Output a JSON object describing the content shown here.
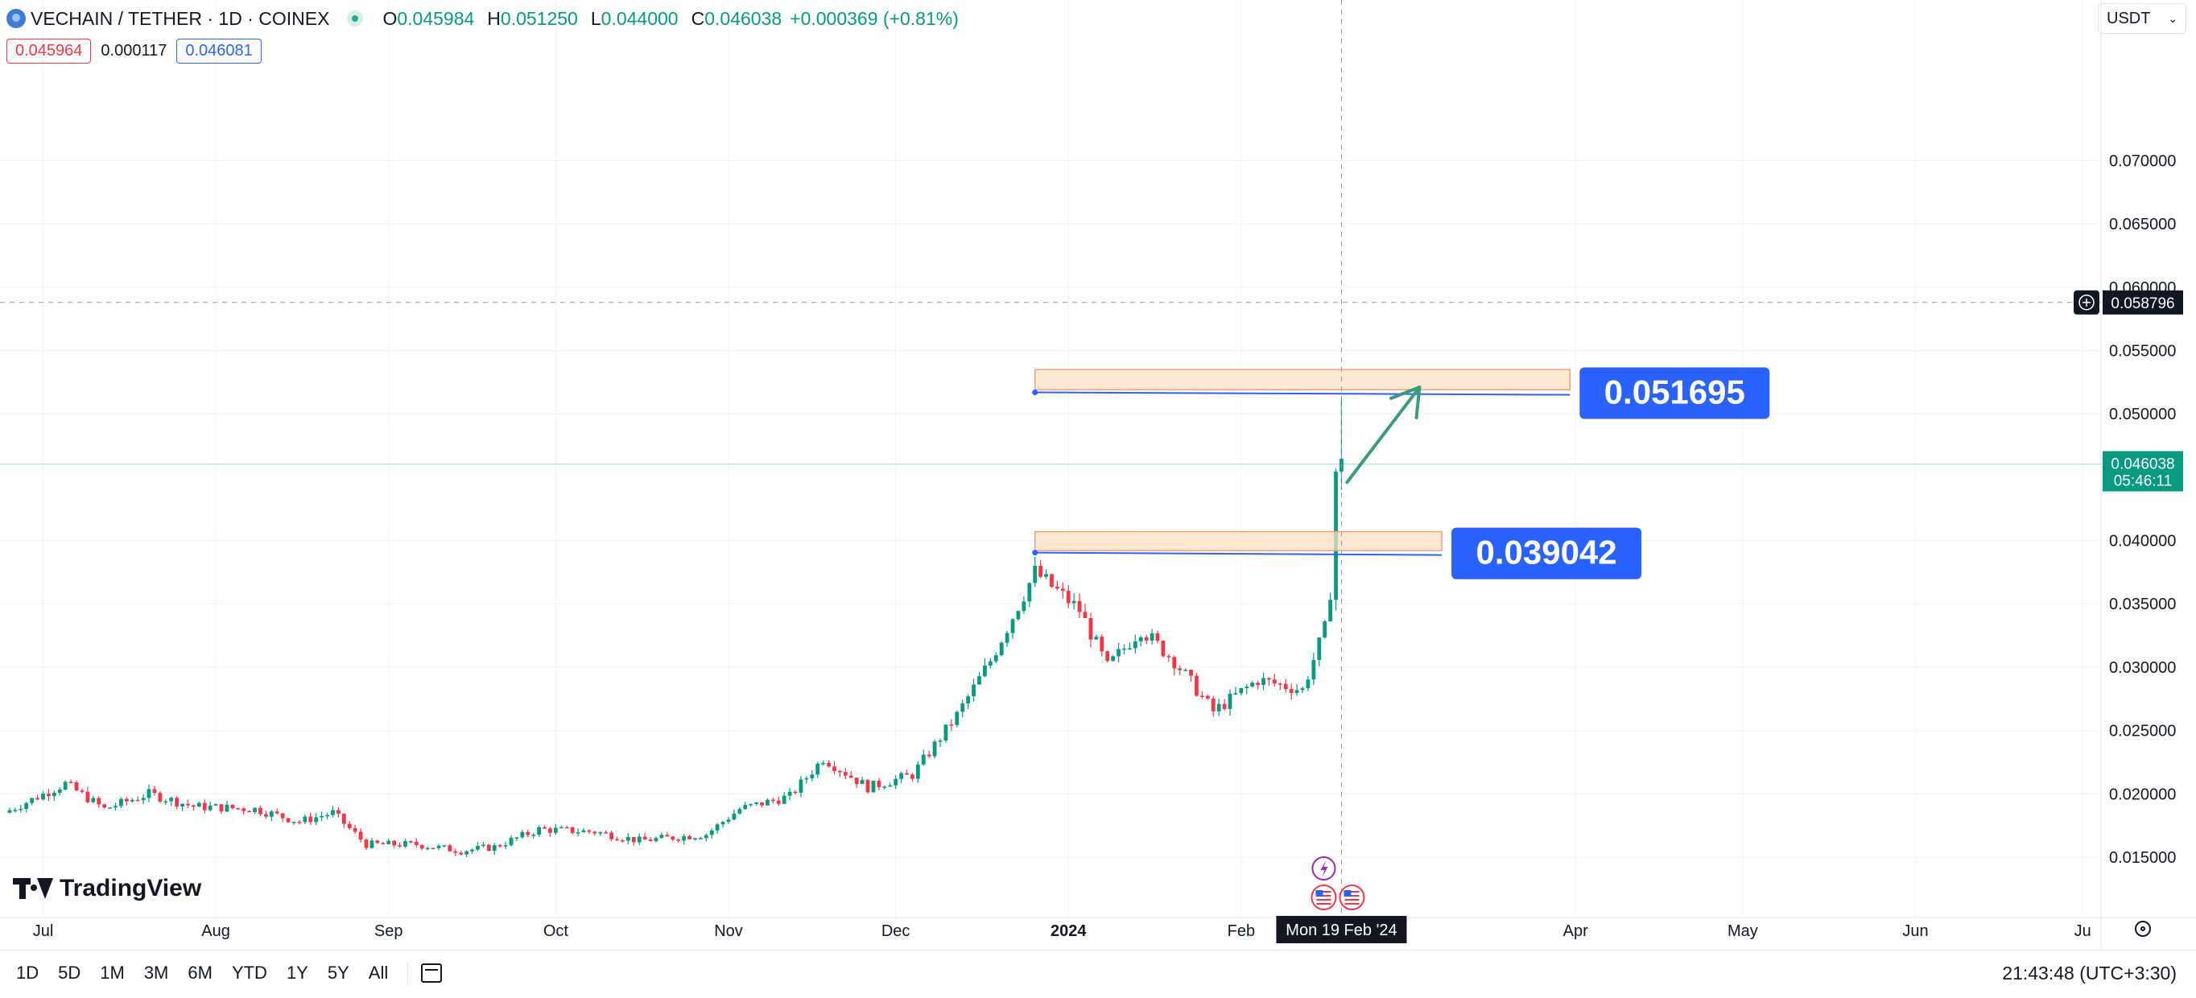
{
  "header": {
    "symbol": "VECHAIN / TETHER · 1D · COINEX",
    "ohlc": [
      {
        "k": "O",
        "v": "0.045984"
      },
      {
        "k": "H",
        "v": "0.051250"
      },
      {
        "k": "L",
        "v": "0.044000"
      },
      {
        "k": "C",
        "v": "0.046038"
      }
    ],
    "change": "+0.000369 (+0.81%)",
    "sell_price": "0.045964",
    "spread": "0.000117",
    "buy_price": "0.046081"
  },
  "currency": {
    "label": "USDT"
  },
  "colors": {
    "up": "#089981",
    "down": "#f23645",
    "annotation": "#2962ff",
    "zone_fill": "#fde0c2",
    "zone_stroke": "#f0a07a",
    "arrow": "#3a9a80"
  },
  "chart_data": {
    "type": "candlestick",
    "title": "VECHAIN / TETHER · 1D · COINEX",
    "ylim": [
      0.0115,
      0.0795
    ],
    "y_ticks": [
      "0.070000",
      "0.065000",
      "0.060000",
      "0.055000",
      "0.050000",
      "0.040000",
      "0.035000",
      "0.030000",
      "0.025000",
      "0.020000",
      "0.015000"
    ],
    "x_ticks": [
      {
        "label": "Jul",
        "date": "2023-07-01",
        "bold": false
      },
      {
        "label": "Aug",
        "date": "2023-08-01",
        "bold": false
      },
      {
        "label": "Sep",
        "date": "2023-09-01",
        "bold": false
      },
      {
        "label": "Oct",
        "date": "2023-10-01",
        "bold": false
      },
      {
        "label": "Nov",
        "date": "2023-11-01",
        "bold": false
      },
      {
        "label": "Dec",
        "date": "2023-12-01",
        "bold": false
      },
      {
        "label": "2024",
        "date": "2024-01-01",
        "bold": true
      },
      {
        "label": "Feb",
        "date": "2024-02-01",
        "bold": false
      },
      {
        "label": "Apr",
        "date": "2024-04-01",
        "bold": false
      },
      {
        "label": "May",
        "date": "2024-05-01",
        "bold": false
      },
      {
        "label": "Jun",
        "date": "2024-06-01",
        "bold": false
      },
      {
        "label": "Ju",
        "date": "2024-07-01",
        "bold": false
      }
    ],
    "price_anchors": [
      [
        "2023-06-24",
        0.0185
      ],
      [
        "2023-07-05",
        0.0208
      ],
      [
        "2023-07-12",
        0.0188
      ],
      [
        "2023-07-20",
        0.02
      ],
      [
        "2023-07-28",
        0.019
      ],
      [
        "2023-08-08",
        0.0188
      ],
      [
        "2023-08-16",
        0.0178
      ],
      [
        "2023-08-22",
        0.0185
      ],
      [
        "2023-08-28",
        0.016
      ],
      [
        "2023-09-06",
        0.016
      ],
      [
        "2023-09-14",
        0.0155
      ],
      [
        "2023-09-20",
        0.0158
      ],
      [
        "2023-09-28",
        0.0172
      ],
      [
        "2023-10-08",
        0.017
      ],
      [
        "2023-10-16",
        0.0163
      ],
      [
        "2023-10-28",
        0.0168
      ],
      [
        "2023-11-03",
        0.0188
      ],
      [
        "2023-11-12",
        0.0198
      ],
      [
        "2023-11-18",
        0.0228
      ],
      [
        "2023-11-26",
        0.0205
      ],
      [
        "2023-12-04",
        0.0215
      ],
      [
        "2023-12-12",
        0.0262
      ],
      [
        "2023-12-18",
        0.0305
      ],
      [
        "2023-12-26",
        0.0375
      ],
      [
        "2024-01-03",
        0.0345
      ],
      [
        "2024-01-08",
        0.03
      ],
      [
        "2024-01-14",
        0.033
      ],
      [
        "2024-01-20",
        0.0305
      ],
      [
        "2024-01-27",
        0.0265
      ],
      [
        "2024-02-04",
        0.029
      ],
      [
        "2024-02-12",
        0.0282
      ],
      [
        "2024-02-16",
        0.033
      ],
      [
        "2024-02-17",
        0.036
      ],
      [
        "2024-02-18",
        0.0455
      ],
      [
        "2024-02-19",
        0.046
      ]
    ],
    "last_candle": {
      "date": "2024-02-19",
      "open": 0.045984,
      "high": 0.05125,
      "low": 0.044,
      "close": 0.046038
    },
    "horizontal_levels": [
      {
        "label": "0.051695",
        "price": 0.051695,
        "start": "2023-12-26",
        "end": "2024-03-31"
      },
      {
        "label": "0.039042",
        "price": 0.039042,
        "start": "2023-12-26",
        "end": "2024-03-08"
      }
    ],
    "zones": [
      {
        "top": 0.0535,
        "bottom": 0.0519,
        "start": "2023-12-26",
        "end": "2024-03-31"
      },
      {
        "top": 0.0407,
        "bottom": 0.0392,
        "start": "2023-12-26",
        "end": "2024-03-08"
      }
    ],
    "arrow": {
      "from": {
        "date": "2024-02-20",
        "price": 0.0446
      },
      "to": {
        "date": "2024-03-04",
        "price": 0.0521
      }
    },
    "crosshair": {
      "date": "2024-02-19",
      "price": 0.058796,
      "label": "0.058796",
      "date_label": "Mon 19 Feb '24"
    },
    "last_price": {
      "price": 0.046038,
      "label": "0.046038",
      "countdown": "05:46:11"
    }
  },
  "bottom_bar": {
    "timeframes": [
      "1D",
      "5D",
      "1M",
      "3M",
      "6M",
      "YTD",
      "1Y",
      "5Y",
      "All"
    ],
    "clock": "21:43:48 (UTC+3:30)"
  },
  "branding": {
    "logo_text": "TradingView"
  }
}
